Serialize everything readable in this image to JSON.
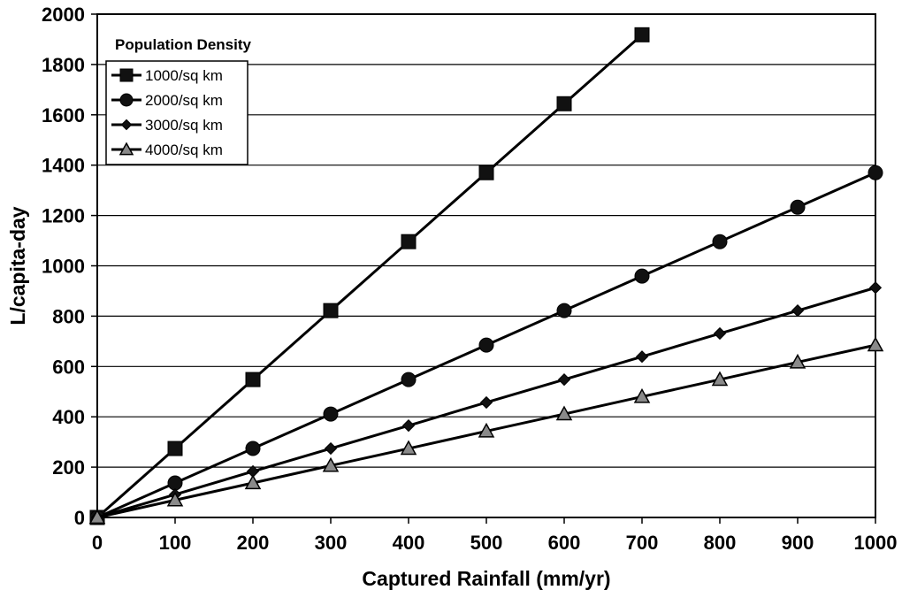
{
  "chart_data": {
    "type": "line",
    "title": "",
    "xlabel": "Captured Rainfall (mm/yr)",
    "ylabel": "L/capita-day",
    "xlim": [
      0,
      1000
    ],
    "ylim": [
      0,
      2000
    ],
    "x_ticks": [
      "0",
      "100",
      "200",
      "300",
      "400",
      "500",
      "600",
      "700",
      "800",
      "900",
      "1000"
    ],
    "y_ticks": [
      "0",
      "200",
      "400",
      "600",
      "800",
      "1000",
      "1200",
      "1400",
      "1600",
      "1800",
      "2000"
    ],
    "grid": "horizontal",
    "legend": {
      "title": "Population Density",
      "position": "top-left"
    },
    "series": [
      {
        "name": "1000/sq km",
        "marker": "square",
        "color": "#000000",
        "x": [
          0,
          100,
          200,
          300,
          400,
          500,
          600,
          700
        ],
        "y": [
          0,
          274,
          548,
          822,
          1096,
          1370,
          1644,
          1918
        ]
      },
      {
        "name": "2000/sq km",
        "marker": "circle",
        "color": "#000000",
        "x": [
          0,
          100,
          200,
          300,
          400,
          500,
          600,
          700,
          800,
          900,
          1000
        ],
        "y": [
          0,
          137,
          274,
          411,
          548,
          685,
          822,
          959,
          1096,
          1233,
          1370
        ]
      },
      {
        "name": "3000/sq km",
        "marker": "diamond",
        "color": "#000000",
        "x": [
          0,
          100,
          200,
          300,
          400,
          500,
          600,
          700,
          800,
          900,
          1000
        ],
        "y": [
          0,
          91,
          183,
          274,
          365,
          457,
          548,
          639,
          731,
          822,
          913
        ]
      },
      {
        "name": "4000/sq km",
        "marker": "triangle",
        "color": "#000000",
        "x": [
          0,
          100,
          200,
          300,
          400,
          500,
          600,
          700,
          800,
          900,
          1000
        ],
        "y": [
          0,
          69,
          137,
          206,
          274,
          343,
          411,
          480,
          548,
          617,
          685
        ]
      }
    ]
  }
}
